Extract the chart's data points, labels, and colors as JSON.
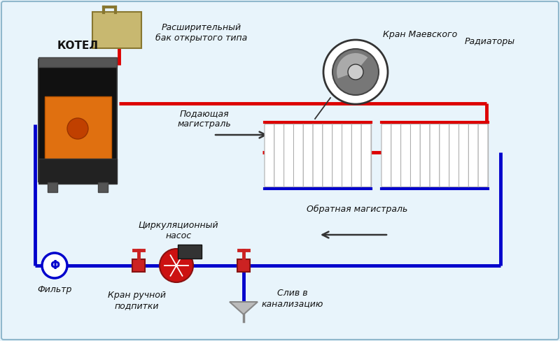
{
  "bg_color": "#e8f4fb",
  "border_color": "#90b8cc",
  "red_pipe": "#dd0000",
  "blue_pipe": "#0000cc",
  "labels": {
    "kotel": "КОТЕЛ",
    "expansion_tank": "Расширительный\nбак открытого типа",
    "supply": "Подающая\nмагистраль",
    "return_main": "Обратная магистраль",
    "pump": "Циркуляционный\nнасос",
    "filter": "Фильтр",
    "manual_valve": "Кран ручной\nподпитки",
    "drain": "Слив в\nканализацию",
    "mayevsky": "Кран Маевского",
    "radiators": "Радиаторы"
  },
  "fig_width": 8.0,
  "fig_height": 4.88
}
